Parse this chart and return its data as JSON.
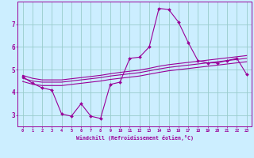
{
  "xlabel": "Windchill (Refroidissement éolien,°C)",
  "bg_color": "#cceeff",
  "grid_color": "#99cccc",
  "line_color": "#990099",
  "x_values": [
    0,
    1,
    2,
    3,
    4,
    5,
    6,
    7,
    8,
    9,
    10,
    11,
    12,
    13,
    14,
    15,
    16,
    17,
    18,
    19,
    20,
    21,
    22,
    23
  ],
  "main_y": [
    4.7,
    4.4,
    4.2,
    4.1,
    3.05,
    2.95,
    3.5,
    2.95,
    2.85,
    4.35,
    4.45,
    5.5,
    5.55,
    6.0,
    7.7,
    7.65,
    7.1,
    6.2,
    5.4,
    5.3,
    5.3,
    5.4,
    5.5,
    4.8
  ],
  "upper_y": [
    4.75,
    4.62,
    4.55,
    4.55,
    4.55,
    4.6,
    4.65,
    4.7,
    4.75,
    4.82,
    4.88,
    4.93,
    4.98,
    5.06,
    5.15,
    5.22,
    5.27,
    5.32,
    5.37,
    5.42,
    5.47,
    5.52,
    5.57,
    5.62
  ],
  "mid_y": [
    4.62,
    4.5,
    4.45,
    4.45,
    4.45,
    4.5,
    4.55,
    4.6,
    4.65,
    4.72,
    4.77,
    4.82,
    4.87,
    4.95,
    5.03,
    5.1,
    5.15,
    5.2,
    5.25,
    5.3,
    5.35,
    5.4,
    5.45,
    5.5
  ],
  "lower_y": [
    4.48,
    4.36,
    4.3,
    4.3,
    4.3,
    4.35,
    4.4,
    4.45,
    4.5,
    4.57,
    4.62,
    4.67,
    4.72,
    4.8,
    4.88,
    4.95,
    5.0,
    5.05,
    5.1,
    5.15,
    5.2,
    5.25,
    5.3,
    5.35
  ],
  "ylim": [
    2.5,
    8.0
  ],
  "yticks": [
    3,
    4,
    5,
    6,
    7
  ],
  "xticks": [
    0,
    1,
    2,
    3,
    4,
    5,
    6,
    7,
    8,
    9,
    10,
    11,
    12,
    13,
    14,
    15,
    16,
    17,
    18,
    19,
    20,
    21,
    22,
    23
  ]
}
